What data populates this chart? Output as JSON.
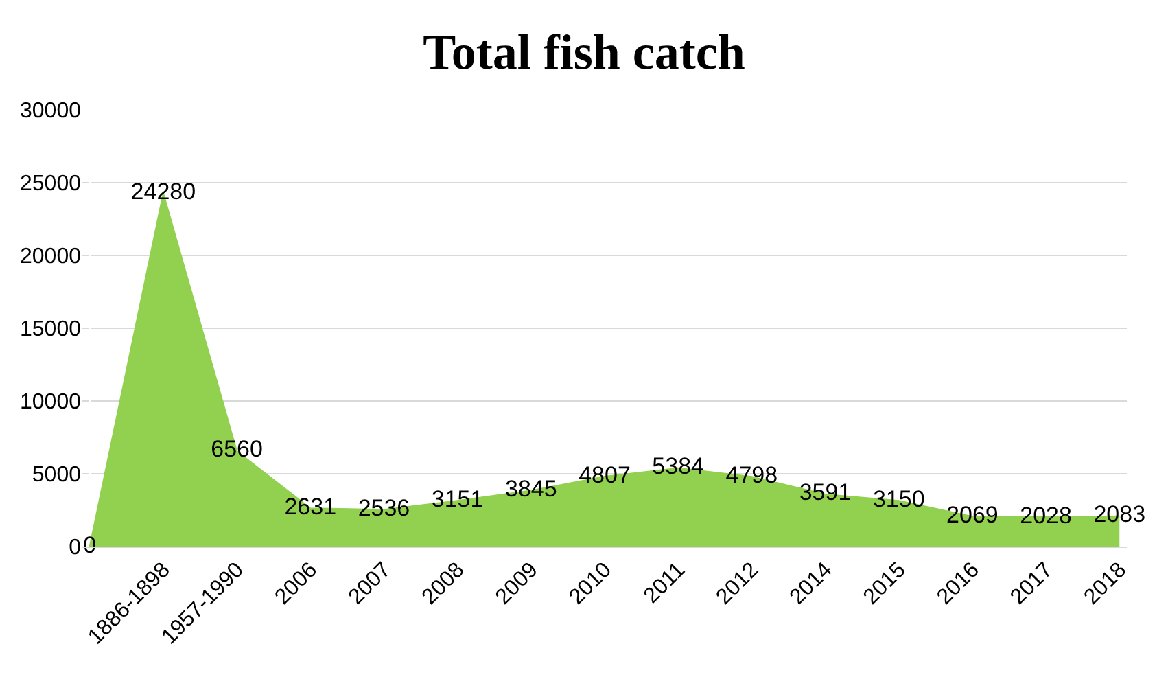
{
  "chart_data": {
    "type": "area",
    "title": "Total fish catch",
    "categories": [
      null,
      "1886-1898",
      "1957-1990",
      "2006",
      "2007",
      "2008",
      "2009",
      "2010",
      "2011",
      "2012",
      "2014",
      "2015",
      "2016",
      "2017",
      "2018"
    ],
    "values": [
      0,
      24280,
      6560,
      2631,
      2536,
      3151,
      3845,
      4807,
      5384,
      4798,
      3591,
      3150,
      2069,
      2028,
      2083
    ],
    "color": "#92d050",
    "ylim": [
      0,
      30000
    ],
    "yticks": [
      0,
      5000,
      10000,
      15000,
      20000,
      25000,
      30000
    ],
    "grid": "y",
    "data_labels": true,
    "legend": false,
    "marker": "none"
  }
}
